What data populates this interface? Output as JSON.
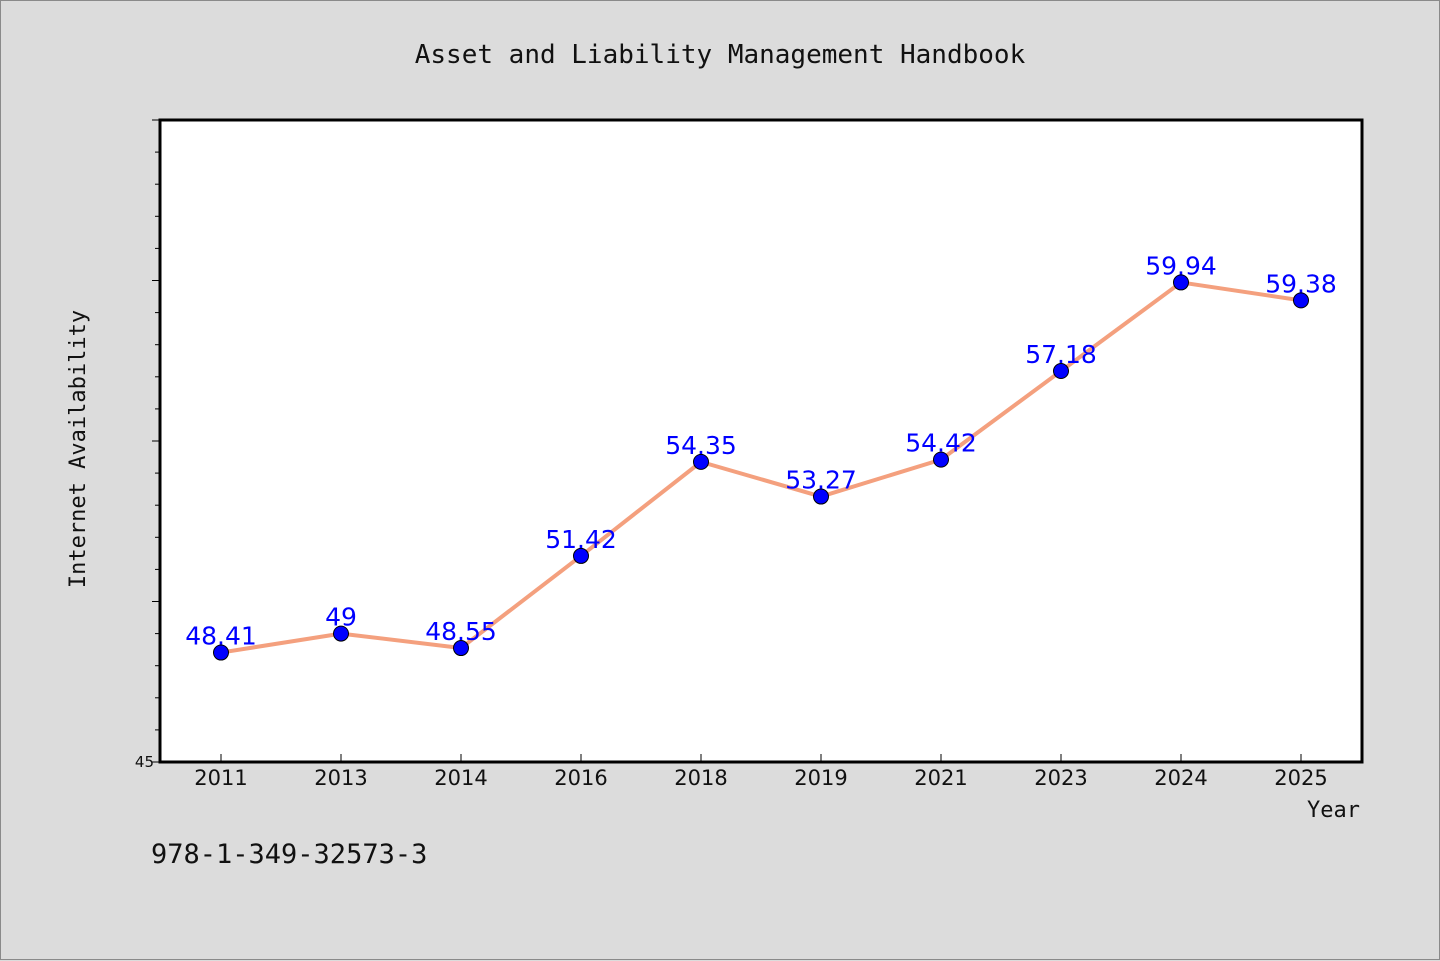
{
  "chart_data": {
    "type": "line",
    "title": "Asset and Liability Management Handbook",
    "xlabel": "Year",
    "ylabel": "Internet Availability",
    "categories": [
      "2011",
      "2013",
      "2014",
      "2016",
      "2018",
      "2019",
      "2021",
      "2023",
      "2024",
      "2025"
    ],
    "series": [
      {
        "values": [
          48.41,
          49,
          48.55,
          51.42,
          54.35,
          53.27,
          54.42,
          57.18,
          59.94,
          59.38
        ],
        "labels": [
          "48.41",
          "49",
          "48.55",
          "51.42",
          "54.35",
          "53.27",
          "54.42",
          "57.18",
          "59.94",
          "59.38"
        ],
        "line_color": "#f4a07e",
        "marker_color": "#0000ff"
      }
    ],
    "ylim": [
      45,
      65
    ],
    "y_tick_labels": [
      "45"
    ],
    "grid": false,
    "legend": "none"
  },
  "footer": {
    "isbn": "978-1-349-32573-3"
  }
}
